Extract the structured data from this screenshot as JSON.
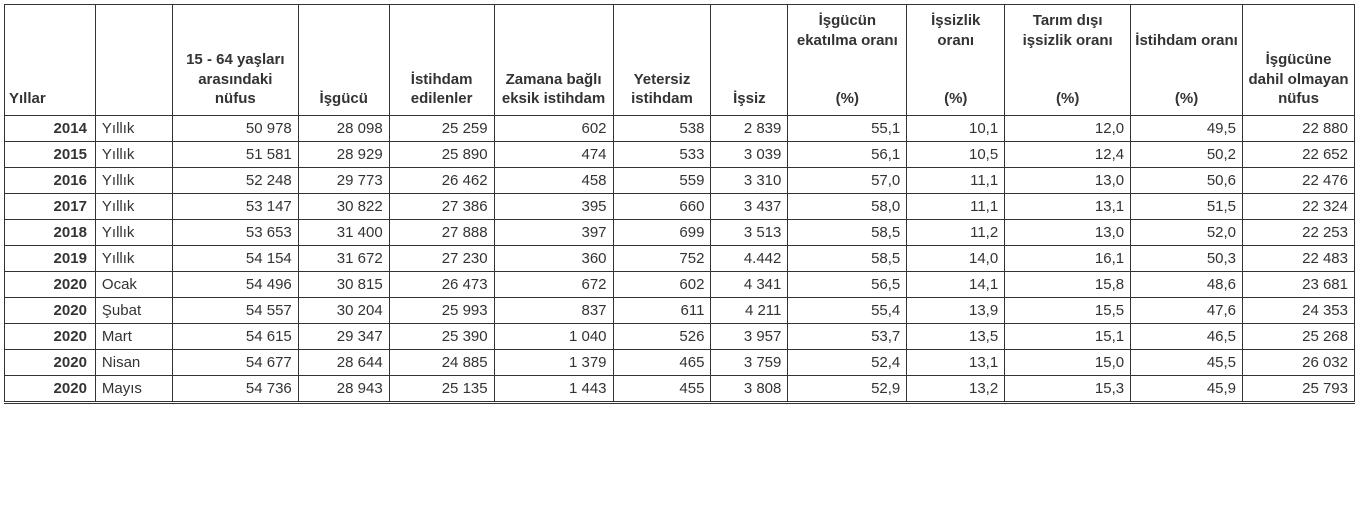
{
  "table": {
    "type": "table",
    "background_color": "#ffffff",
    "border_color": "#333333",
    "text_color": "#333333",
    "header_fontsize": 15,
    "cell_fontsize": 15,
    "columns": [
      "Yıllar",
      "",
      "15 - 64 yaşları arasındaki nüfus",
      "İşgücü",
      "İstihdam edilenler",
      "Zamana bağlı eksik istihdam",
      "Yetersiz istihdam",
      "İşsiz",
      "İşgücün ekatılma oranı\n\n(%)",
      "İşsizlik oranı\n\n(%)",
      "Tarım dışı işsizlik oranı\n\n(%)",
      "İstihdam oranı\n\n(%)",
      "İşgücüne dahil olmayan nüfus"
    ],
    "column_align": [
      "right",
      "left",
      "right",
      "right",
      "right",
      "right",
      "right",
      "right",
      "right",
      "right",
      "right",
      "right",
      "right"
    ],
    "rows": [
      [
        "2014",
        "Yıllık",
        "50 978",
        "28 098",
        "25 259",
        "602",
        "538",
        "2 839",
        "55,1",
        "10,1",
        "12,0",
        "49,5",
        "22 880"
      ],
      [
        "2015",
        "Yıllık",
        "51 581",
        "28 929",
        "25 890",
        "474",
        "533",
        "3 039",
        "56,1",
        "10,5",
        "12,4",
        "50,2",
        "22 652"
      ],
      [
        "2016",
        "Yıllık",
        "52 248",
        "29 773",
        "26 462",
        "458",
        "559",
        "3 310",
        "57,0",
        "11,1",
        "13,0",
        "50,6",
        "22 476"
      ],
      [
        "2017",
        "Yıllık",
        "53 147",
        "30 822",
        "27 386",
        "395",
        "660",
        "3 437",
        "58,0",
        "11,1",
        "13,1",
        "51,5",
        "22 324"
      ],
      [
        "2018",
        "Yıllık",
        "53 653",
        "31 400",
        "27 888",
        "397",
        "699",
        "3 513",
        "58,5",
        "11,2",
        "13,0",
        "52,0",
        "22 253"
      ],
      [
        "2019",
        "Yıllık",
        "54 154",
        "31 672",
        "27 230",
        "360",
        "752",
        "4.442",
        "58,5",
        "14,0",
        "16,1",
        "50,3",
        "22 483"
      ],
      [
        "2020",
        "Ocak",
        "54 496",
        "30 815",
        "26 473",
        "672",
        "602",
        "4 341",
        "56,5",
        "14,1",
        "15,8",
        "48,6",
        "23 681"
      ],
      [
        "2020",
        "Şubat",
        "54 557",
        "30 204",
        "25 993",
        "837",
        "611",
        "4 211",
        "55,4",
        "13,9",
        "15,5",
        "47,6",
        "24 353"
      ],
      [
        "2020",
        "Mart",
        "54 615",
        "29 347",
        "25 390",
        "1 040",
        "526",
        "3 957",
        "53,7",
        "13,5",
        "15,1",
        "46,5",
        "25 268"
      ],
      [
        "2020",
        "Nisan",
        "54 677",
        "28 644",
        "24 885",
        "1 379",
        "465",
        "3 759",
        "52,4",
        "13,1",
        "15,0",
        "45,5",
        "26 032"
      ],
      [
        "2020",
        "Mayıs",
        "54 736",
        "28 943",
        "25 135",
        "1 443",
        "455",
        "3 808",
        "52,9",
        "13,2",
        "15,3",
        "45,9",
        "25 793"
      ]
    ]
  }
}
